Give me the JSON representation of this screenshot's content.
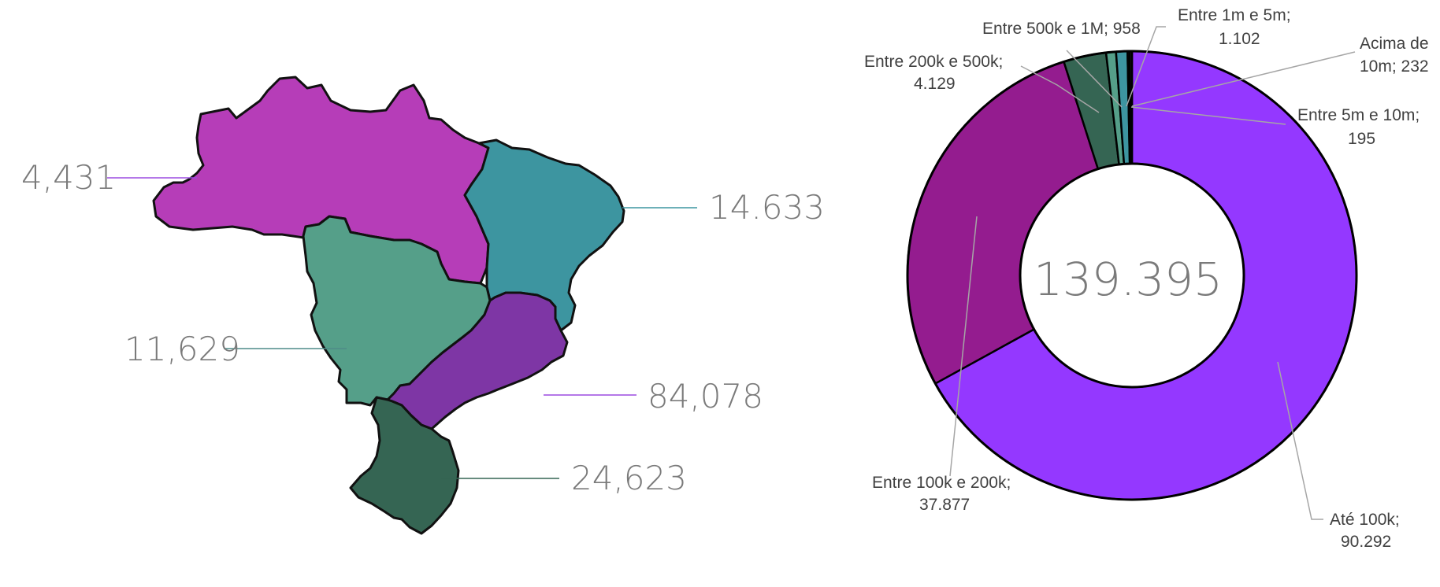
{
  "chart_data": [
    {
      "type": "map",
      "regions": [
        {
          "name": "Norte",
          "value_label": "4,431",
          "value": 4431,
          "color": "#b63db8"
        },
        {
          "name": "Nordeste",
          "value_label": "14.633",
          "value": 14633,
          "color": "#3d95a0"
        },
        {
          "name": "Centro-Oeste",
          "value_label": "11,629",
          "value": 11629,
          "color": "#559f89"
        },
        {
          "name": "Sudeste",
          "value_label": "84,078",
          "value": 84078,
          "color": "#7e36a5"
        },
        {
          "name": "Sul",
          "value_label": "24,623",
          "value": 24623,
          "color": "#356553"
        }
      ]
    },
    {
      "type": "pie",
      "donut": true,
      "center_label": "139.395",
      "slices": [
        {
          "label_line1": "Até 100k;",
          "label_line2": "90.292",
          "value": 90292,
          "color": "#9438ff"
        },
        {
          "label_line1": "Entre 100k e 200k;",
          "label_line2": "37.877",
          "value": 37877,
          "color": "#941c8f"
        },
        {
          "label_line1": "Entre 200k e 500k;",
          "label_line2": "4.129",
          "value": 4129,
          "color": "#356553"
        },
        {
          "label_line1": "Entre 500k e 1M; 958",
          "label_line2": "",
          "value": 958,
          "color": "#559f89"
        },
        {
          "label_line1": "Entre 1m e 5m;",
          "label_line2": "1.102",
          "value": 1102,
          "color": "#3d95a0"
        },
        {
          "label_line1": "Entre 5m e 10m;",
          "label_line2": "195",
          "value": 195,
          "color": "#7e36a5"
        },
        {
          "label_line1": "Acima de",
          "label_line2": "10m; 232",
          "value": 232,
          "color": "#1f1f1f"
        }
      ]
    }
  ]
}
